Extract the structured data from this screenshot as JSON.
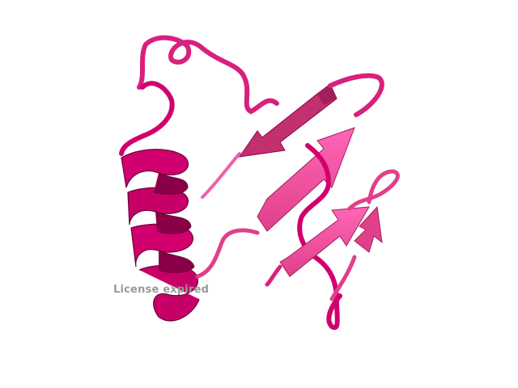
{
  "viewer": {
    "background": "#ffffff",
    "watermark_text": "License expired",
    "watermark_color": "#9a9a9a"
  },
  "structure": {
    "style": "cartoon",
    "colors": {
      "helix": "#d1006e",
      "helix_dark": "#8a0048",
      "sheet": "#ff3c9e",
      "sheet_shade": "#c2306f",
      "loop": "#d8207e",
      "loop_light": "#f060a8"
    },
    "elements": [
      "loop",
      "alpha-helix",
      "beta-strand",
      "beta-strand",
      "beta-strand",
      "beta-strand",
      "beta-strand"
    ]
  }
}
